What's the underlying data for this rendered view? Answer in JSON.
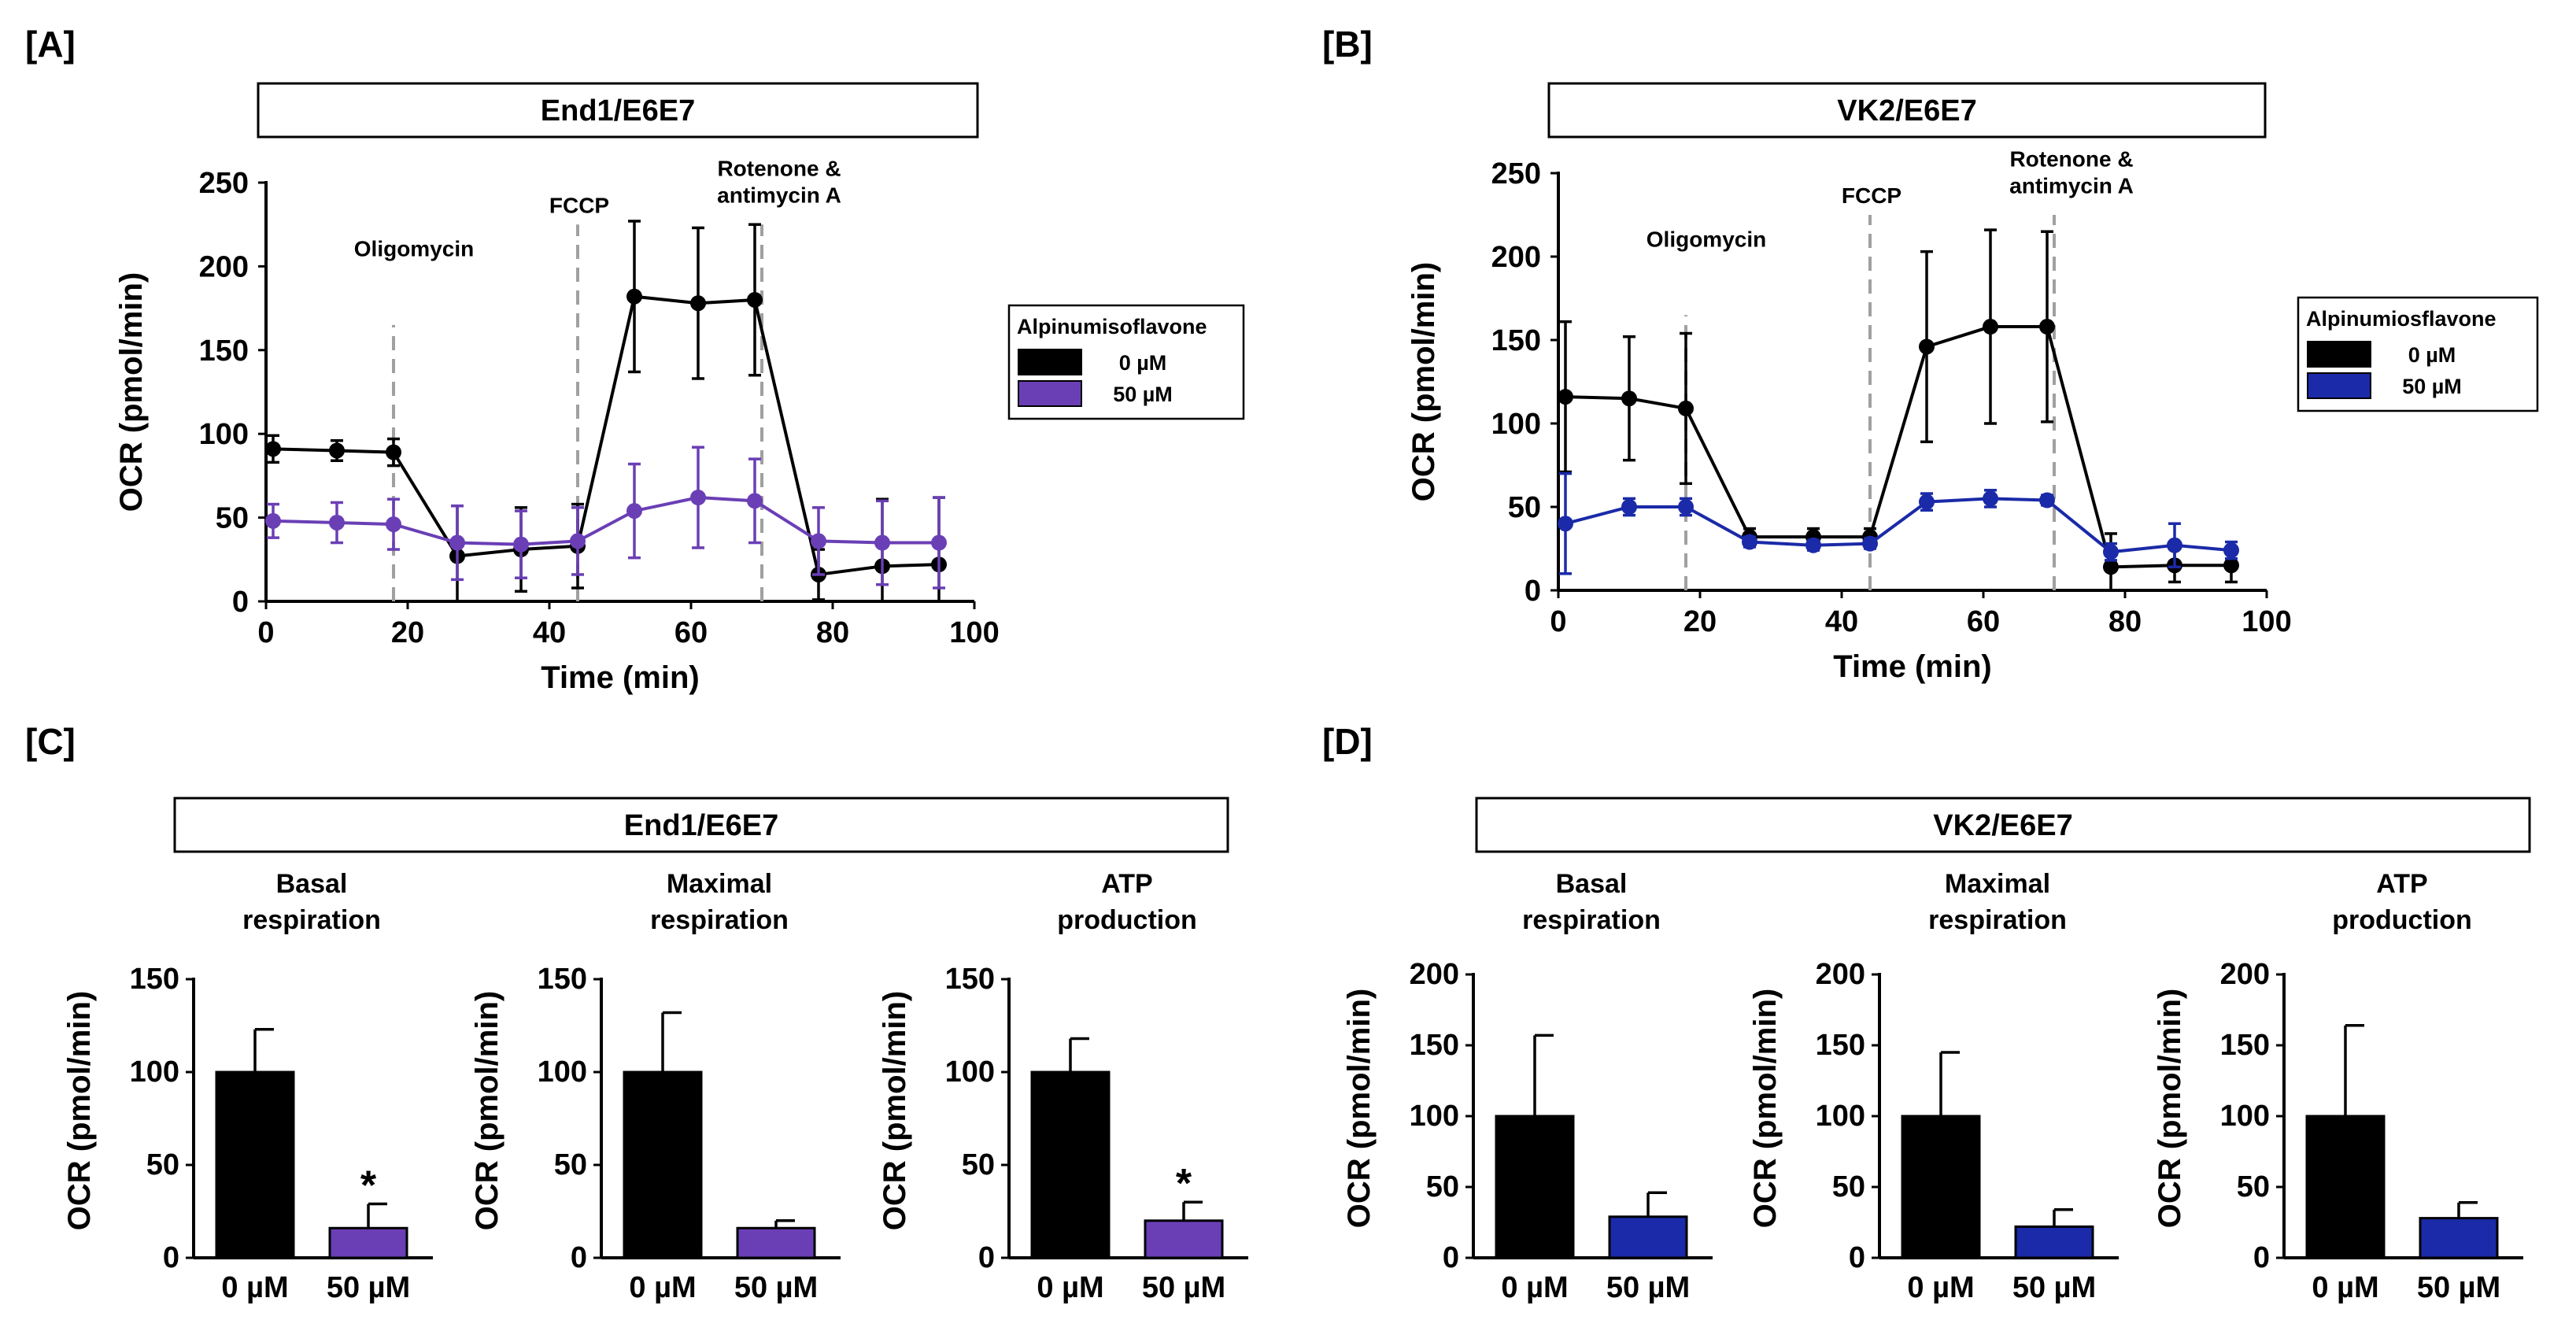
{
  "chart_data": [
    {
      "panel": "[A]",
      "title": "End1/E6E7",
      "type": "line",
      "xlabel": "Time (min)",
      "ylabel": "OCR (pmol/min)",
      "xlim": [
        0,
        100
      ],
      "ylim": [
        0,
        250
      ],
      "xticks": [
        "0",
        "20",
        "40",
        "60",
        "80",
        "100"
      ],
      "yticks": [
        "0",
        "50",
        "100",
        "150",
        "200",
        "250"
      ],
      "x": [
        1,
        10,
        18,
        27,
        36,
        44,
        52,
        61,
        69,
        78,
        87,
        95
      ],
      "injections": [
        {
          "label": "Oligomycin",
          "x": 18
        },
        {
          "label": "FCCP",
          "x": 44
        },
        {
          "label_lines": [
            "Rotenone &",
            "antimycin A"
          ],
          "x": 70
        }
      ],
      "legend": {
        "title": "Alpinumisoflavone"
      },
      "series": [
        {
          "name": "0 µM",
          "color": "#000000",
          "values": [
            91,
            90,
            89,
            27,
            31,
            33,
            182,
            178,
            180,
            16,
            21,
            22
          ],
          "errors": [
            8,
            6,
            8,
            30,
            25,
            25,
            45,
            45,
            45,
            15,
            40,
            40
          ]
        },
        {
          "name": "50 µM",
          "color": "#6a3fb5",
          "values": [
            48,
            47,
            46,
            35,
            34,
            36,
            54,
            62,
            60,
            36,
            35,
            35
          ],
          "errors": [
            10,
            12,
            15,
            22,
            20,
            20,
            28,
            30,
            25,
            20,
            25,
            27
          ]
        }
      ]
    },
    {
      "panel": "[B]",
      "title": "VK2/E6E7",
      "type": "line",
      "xlabel": "Time (min)",
      "ylabel": "OCR (pmol/min)",
      "xlim": [
        0,
        100
      ],
      "ylim": [
        0,
        250
      ],
      "xticks": [
        "0",
        "20",
        "40",
        "60",
        "80",
        "100"
      ],
      "yticks": [
        "0",
        "50",
        "100",
        "150",
        "200",
        "250"
      ],
      "x": [
        1,
        10,
        18,
        27,
        36,
        44,
        52,
        61,
        69,
        78,
        87,
        95
      ],
      "injections": [
        {
          "label": "Oligomycin",
          "x": 18
        },
        {
          "label": "FCCP",
          "x": 44
        },
        {
          "label_lines": [
            "Rotenone &",
            "antimycin A"
          ],
          "x": 70
        }
      ],
      "legend": {
        "title": "Alpinumiosflavone"
      },
      "series": [
        {
          "name": "0 µM",
          "color": "#000000",
          "values": [
            116,
            115,
            109,
            32,
            32,
            32,
            146,
            158,
            158,
            14,
            15,
            15
          ],
          "errors": [
            45,
            37,
            45,
            5,
            5,
            5,
            57,
            58,
            57,
            20,
            10,
            10
          ]
        },
        {
          "name": "50 µM",
          "color": "#1a2aa8",
          "values": [
            40,
            50,
            50,
            29,
            27,
            28,
            53,
            55,
            54,
            23,
            27,
            24
          ],
          "errors": [
            30,
            5,
            5,
            3,
            3,
            3,
            5,
            5,
            3,
            5,
            13,
            5
          ]
        }
      ]
    },
    {
      "panel": "[C]",
      "title": "End1/E6E7",
      "type": "bar",
      "ylabel": "OCR (pmol/min)",
      "ylim": [
        0,
        150
      ],
      "yticks": [
        "0",
        "50",
        "100",
        "150"
      ],
      "categories": [
        "0 µM",
        "50 µM"
      ],
      "colors": [
        "#000000",
        "#6a3fb5"
      ],
      "subplots": [
        {
          "title_lines": [
            "Basal",
            "respiration"
          ],
          "values": [
            100,
            16
          ],
          "errors": [
            23,
            13
          ],
          "significance": [
            "",
            "*"
          ]
        },
        {
          "title_lines": [
            "Maximal",
            "respiration"
          ],
          "values": [
            100,
            16
          ],
          "errors": [
            32,
            4
          ],
          "significance": [
            "",
            ""
          ]
        },
        {
          "title_lines": [
            "ATP",
            "production"
          ],
          "values": [
            100,
            20
          ],
          "errors": [
            18,
            10
          ],
          "significance": [
            "",
            "*"
          ]
        }
      ]
    },
    {
      "panel": "[D]",
      "title": "VK2/E6E7",
      "type": "bar",
      "ylabel": "OCR (pmol/min)",
      "ylim": [
        0,
        200
      ],
      "yticks": [
        "0",
        "50",
        "100",
        "150",
        "200"
      ],
      "categories": [
        "0 µM",
        "50 µM"
      ],
      "colors": [
        "#000000",
        "#1a2aa8"
      ],
      "subplots": [
        {
          "title_lines": [
            "Basal",
            "respiration"
          ],
          "values": [
            100,
            29
          ],
          "errors": [
            57,
            17
          ],
          "significance": [
            "",
            ""
          ]
        },
        {
          "title_lines": [
            "Maximal",
            "respiration"
          ],
          "values": [
            100,
            22
          ],
          "errors": [
            45,
            12
          ],
          "significance": [
            "",
            ""
          ]
        },
        {
          "title_lines": [
            "ATP",
            "production"
          ],
          "values": [
            100,
            28
          ],
          "errors": [
            64,
            11
          ],
          "significance": [
            "",
            ""
          ]
        }
      ]
    }
  ]
}
